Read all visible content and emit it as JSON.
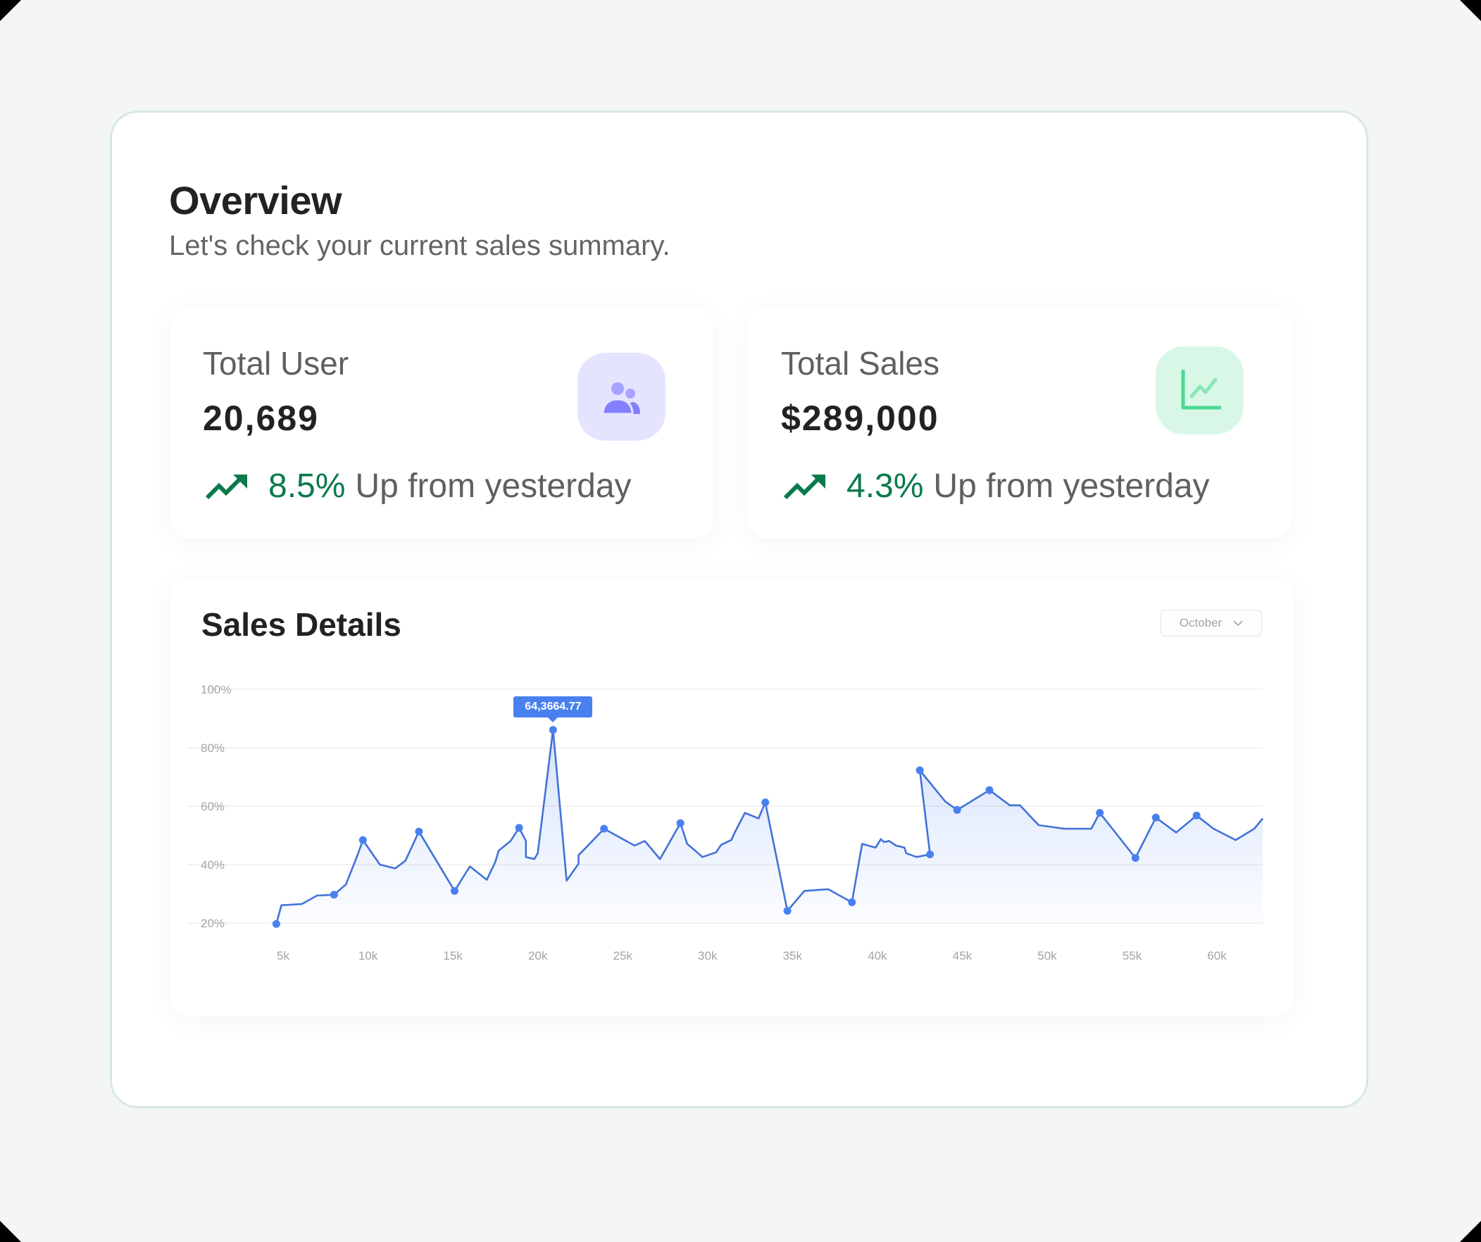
{
  "header": {
    "title": "Overview",
    "subtitle": "Let's check your current sales summary."
  },
  "stats": [
    {
      "label": "Total User",
      "value": "20,689",
      "icon": "users-icon",
      "icon_color": "#8280ff",
      "icon_bg": "#e5e4ff",
      "trend_icon": "trending-up-icon",
      "trend_pct": "8.5%",
      "trend_text": "Up from yesterday",
      "trend_color": "#0b7a4b"
    },
    {
      "label": "Total Sales",
      "value": "$289,000",
      "icon": "line-chart-icon",
      "icon_color": "#4ad991",
      "icon_bg": "#d9f7e7",
      "trend_icon": "trending-up-icon",
      "trend_pct": "4.3%",
      "trend_text": "Up from yesterday",
      "trend_color": "#0b7a4b"
    }
  ],
  "sales_details": {
    "title": "Sales Details",
    "month_select": {
      "selected": "October",
      "icon": "chevron-down-icon"
    },
    "tooltip": "64,3664.77"
  },
  "chart_data": {
    "type": "area",
    "title": "Sales Details",
    "xlabel": "",
    "ylabel": "",
    "x_ticks": [
      "5k",
      "10k",
      "15k",
      "20k",
      "25k",
      "30k",
      "35k",
      "40k",
      "45k",
      "50k",
      "55k",
      "60k"
    ],
    "x_tick_values": [
      5,
      10,
      15,
      20,
      25,
      30,
      35,
      40,
      45,
      50,
      55,
      60
    ],
    "y_ticks": [
      "20%",
      "40%",
      "60%",
      "80%",
      "100%"
    ],
    "y_tick_values": [
      20,
      40,
      60,
      80,
      100
    ],
    "ylim": [
      20,
      100
    ],
    "xlim": [
      4.6,
      62.7
    ],
    "grid": true,
    "legend": null,
    "line_color": "#4880f0",
    "fill_color": "#4880f0",
    "annotation": {
      "x": 20.9,
      "y": 86.1,
      "label": "64,3664.77"
    },
    "series": [
      {
        "name": "Sales",
        "points": [
          [
            4.6,
            19.7,
            1
          ],
          [
            4.9,
            26.1,
            0
          ],
          [
            6.1,
            26.5,
            0
          ],
          [
            7.0,
            29.4,
            0
          ],
          [
            8.0,
            29.7,
            1
          ],
          [
            8.7,
            33.2,
            0
          ],
          [
            9.4,
            43.5,
            0
          ],
          [
            9.7,
            48.4,
            1
          ],
          [
            10.7,
            40.0,
            0
          ],
          [
            11.6,
            38.7,
            0
          ],
          [
            12.2,
            41.3,
            0
          ],
          [
            13.0,
            51.3,
            1
          ],
          [
            15.1,
            31.0,
            1
          ],
          [
            16.0,
            39.4,
            0
          ],
          [
            17.0,
            34.8,
            0
          ],
          [
            17.5,
            41.0,
            0
          ],
          [
            17.7,
            44.8,
            0
          ],
          [
            18.4,
            48.1,
            0
          ],
          [
            18.9,
            52.6,
            1
          ],
          [
            19.3,
            48.1,
            0
          ],
          [
            19.3,
            42.6,
            0
          ],
          [
            19.8,
            41.9,
            0
          ],
          [
            20.0,
            43.9,
            0
          ],
          [
            20.9,
            86.1,
            1
          ],
          [
            21.7,
            34.5,
            0
          ],
          [
            22.4,
            40.3,
            0
          ],
          [
            22.4,
            43.2,
            0
          ],
          [
            23.1,
            47.4,
            0
          ],
          [
            23.9,
            52.3,
            1
          ],
          [
            25.7,
            46.5,
            0
          ],
          [
            26.3,
            48.1,
            0
          ],
          [
            27.2,
            41.9,
            0
          ],
          [
            28.4,
            54.2,
            1
          ],
          [
            28.8,
            47.1,
            0
          ],
          [
            29.7,
            42.6,
            0
          ],
          [
            30.5,
            44.2,
            0
          ],
          [
            30.8,
            46.8,
            0
          ],
          [
            31.4,
            48.4,
            0
          ],
          [
            31.6,
            51.0,
            0
          ],
          [
            32.2,
            57.7,
            0
          ],
          [
            33.0,
            55.8,
            0
          ],
          [
            33.4,
            61.3,
            1
          ],
          [
            34.7,
            24.2,
            1
          ],
          [
            35.7,
            31.0,
            0
          ],
          [
            37.1,
            31.6,
            0
          ],
          [
            38.5,
            27.1,
            1
          ],
          [
            39.1,
            47.1,
            0
          ],
          [
            39.9,
            45.8,
            0
          ],
          [
            40.2,
            48.7,
            0
          ],
          [
            40.4,
            47.7,
            0
          ],
          [
            40.7,
            48.1,
            0
          ],
          [
            41.1,
            46.5,
            0
          ],
          [
            41.6,
            45.8,
            0
          ],
          [
            41.7,
            43.9,
            0
          ],
          [
            42.3,
            42.6,
            0
          ],
          [
            43.1,
            43.5,
            1
          ],
          [
            42.5,
            72.3,
            1
          ],
          [
            44.0,
            61.6,
            0
          ],
          [
            44.7,
            58.7,
            1
          ],
          [
            46.6,
            65.5,
            1
          ],
          [
            47.8,
            60.3,
            0
          ],
          [
            48.4,
            60.3,
            0
          ],
          [
            49.5,
            53.5,
            0
          ],
          [
            51.0,
            52.3,
            0
          ],
          [
            52.6,
            52.3,
            0
          ],
          [
            53.1,
            57.7,
            1
          ],
          [
            55.2,
            42.3,
            1
          ],
          [
            56.4,
            56.1,
            1
          ],
          [
            57.6,
            51.0,
            0
          ],
          [
            58.8,
            56.8,
            1
          ],
          [
            59.8,
            52.3,
            0
          ],
          [
            61.1,
            48.4,
            0
          ],
          [
            62.2,
            52.3,
            0
          ],
          [
            62.7,
            55.8,
            0
          ]
        ]
      }
    ]
  }
}
